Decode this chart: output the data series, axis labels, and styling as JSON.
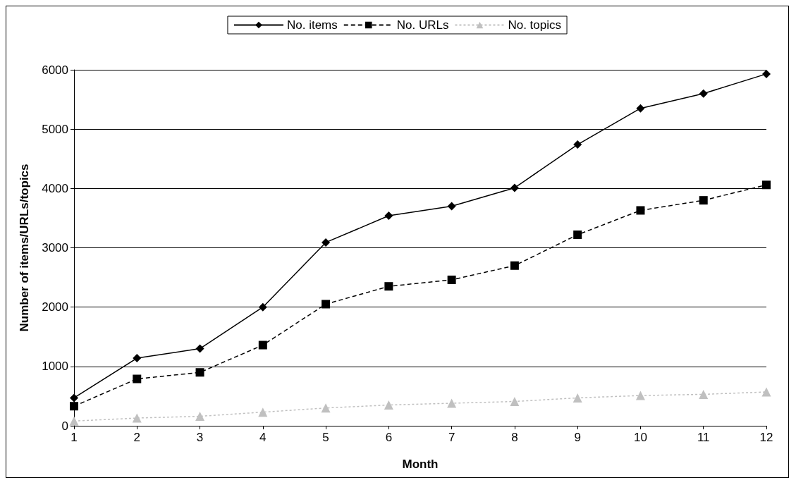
{
  "chart_data": {
    "type": "line",
    "xlabel": "Month",
    "ylabel": "Number of items/URLs/topics",
    "x": [
      1,
      2,
      3,
      4,
      5,
      6,
      7,
      8,
      9,
      10,
      11,
      12
    ],
    "xlim": [
      1,
      12
    ],
    "xticks": [
      1,
      2,
      3,
      4,
      5,
      6,
      7,
      8,
      9,
      10,
      11,
      12
    ],
    "series": [
      {
        "name": "No. items",
        "color": "#000000",
        "marker": "diamond",
        "line_style": "solid",
        "values": [
          470,
          1140,
          1300,
          2000,
          3090,
          3540,
          3700,
          4010,
          4740,
          5350,
          5600,
          5930
        ]
      },
      {
        "name": "No. URLs",
        "color": "#000000",
        "marker": "square",
        "line_style": "dashed",
        "values": [
          330,
          790,
          900,
          1360,
          2050,
          2350,
          2460,
          2700,
          3220,
          3630,
          3800,
          4060
        ]
      },
      {
        "name": "No. topics",
        "color": "#c0c0c0",
        "marker": "triangle",
        "line_style": "dotted",
        "values": [
          80,
          130,
          160,
          230,
          300,
          350,
          380,
          410,
          470,
          510,
          530,
          570
        ]
      }
    ],
    "ylim": [
      0,
      6000
    ],
    "yticks": [
      0,
      1000,
      2000,
      3000,
      4000,
      5000,
      6000
    ],
    "grid": "y",
    "legend": "top"
  }
}
